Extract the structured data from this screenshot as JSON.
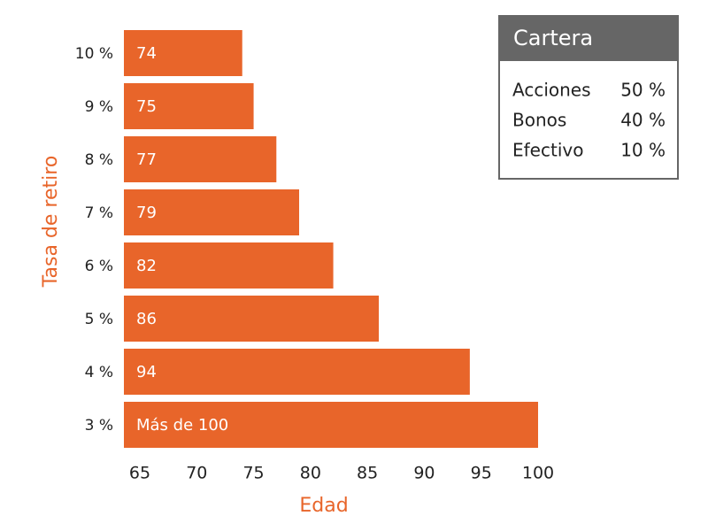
{
  "chart_data": {
    "type": "bar",
    "orientation": "horizontal",
    "x_label": "Edad",
    "y_label": "Tasa de retiro",
    "categories": [
      "10 %",
      "9 %",
      "8 %",
      "7 %",
      "6 %",
      "5 %",
      "4 %",
      "3 %"
    ],
    "values": [
      74,
      75,
      77,
      79,
      82,
      86,
      94,
      100
    ],
    "value_labels": [
      "74",
      "75",
      "77",
      "79",
      "82",
      "86",
      "94",
      "Más de 100"
    ],
    "color": "#e8652a",
    "xlim": [
      63.6,
      100
    ],
    "xticks": [
      65,
      70,
      75,
      80,
      85,
      90,
      95,
      100
    ],
    "grid": false,
    "portfolio": {
      "title": "Cartera",
      "rows": [
        [
          "Acciones",
          "50 %"
        ],
        [
          "Bonos",
          "40 %"
        ],
        [
          "Efectivo",
          "10 %"
        ]
      ]
    }
  }
}
